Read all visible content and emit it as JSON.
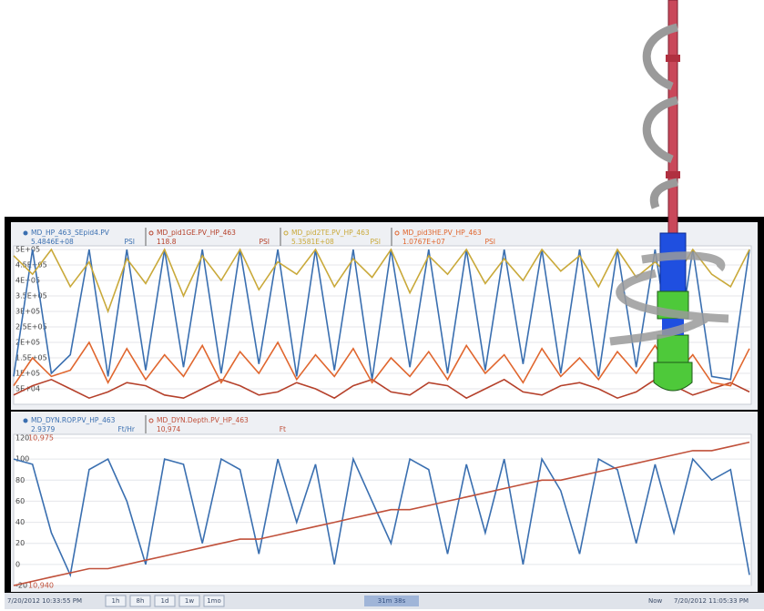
{
  "chart_data": [
    {
      "type": "line",
      "grid": true,
      "ylim": [
        0,
        500000
      ],
      "yticks": [
        {
          "value": 50000,
          "label": "5E+04"
        },
        {
          "value": 100000,
          "label": "1E+05"
        },
        {
          "value": 150000,
          "label": "1.5E+05"
        },
        {
          "value": 200000,
          "label": "2E+05"
        },
        {
          "value": 250000,
          "label": "2.5E+05"
        },
        {
          "value": 300000,
          "label": "3E+05"
        },
        {
          "value": 350000,
          "label": "3.5E+05"
        },
        {
          "value": 400000,
          "label": "4E+05"
        },
        {
          "value": 450000,
          "label": "4.5E+05"
        },
        {
          "value": 500000,
          "label": "5E+05"
        }
      ],
      "series": [
        {
          "name": "MD_HP_463_SEpid4.PV",
          "current": "5.4846E+08",
          "unit": "PSI",
          "color": "#3a6fb0",
          "values": [
            90000,
            500000,
            100000,
            160000,
            500000,
            90000,
            500000,
            110000,
            500000,
            120000,
            500000,
            100000,
            500000,
            130000,
            500000,
            90000,
            500000,
            110000,
            500000,
            80000,
            500000,
            120000,
            500000,
            100000,
            500000,
            110000,
            500000,
            130000,
            500000,
            100000,
            500000,
            90000,
            500000,
            120000,
            500000,
            100000,
            500000,
            90000,
            80000,
            500000
          ]
        },
        {
          "name": "MD_pid1GE.PV_HP_463",
          "current": "118.8",
          "unit": "PSI",
          "color": "#b5402a",
          "values": [
            30000,
            60000,
            80000,
            50000,
            20000,
            40000,
            70000,
            60000,
            30000,
            20000,
            50000,
            80000,
            60000,
            30000,
            40000,
            70000,
            50000,
            20000,
            60000,
            80000,
            40000,
            30000,
            70000,
            60000,
            20000,
            50000,
            80000,
            40000,
            30000,
            60000,
            70000,
            50000,
            20000,
            40000,
            80000,
            60000,
            30000,
            50000,
            70000,
            40000
          ]
        },
        {
          "name": "MD_pid2TE.PV_HP_463",
          "current": "5.3581E+08",
          "unit": "PSI",
          "color": "#c9a93a",
          "values": [
            480000,
            420000,
            500000,
            380000,
            460000,
            300000,
            470000,
            390000,
            500000,
            350000,
            480000,
            400000,
            500000,
            370000,
            460000,
            420000,
            500000,
            380000,
            470000,
            410000,
            500000,
            360000,
            480000,
            420000,
            500000,
            390000,
            470000,
            400000,
            500000,
            430000,
            480000,
            380000,
            500000,
            410000,
            460000,
            400000,
            500000,
            420000,
            380000,
            500000
          ]
        },
        {
          "name": "MD_pid3HE.PV_HP_463",
          "current": "1.0767E+07",
          "unit": "PSI",
          "color": "#e0662e",
          "values": [
            60000,
            150000,
            90000,
            110000,
            200000,
            70000,
            180000,
            80000,
            160000,
            90000,
            190000,
            70000,
            170000,
            100000,
            200000,
            80000,
            160000,
            90000,
            180000,
            70000,
            150000,
            90000,
            170000,
            80000,
            190000,
            100000,
            160000,
            70000,
            180000,
            90000,
            150000,
            80000,
            170000,
            100000,
            190000,
            90000,
            160000,
            70000,
            60000,
            180000
          ]
        }
      ]
    },
    {
      "type": "line",
      "grid": true,
      "ylim": [
        -20,
        120
      ],
      "yticks": [
        -20,
        0,
        20,
        40,
        60,
        80,
        100,
        120
      ],
      "y2lim": [
        10940,
        10975
      ],
      "y2ticks": [
        {
          "value": 10940,
          "label": "10,940"
        },
        {
          "value": 10975,
          "label": "10,975"
        }
      ],
      "series": [
        {
          "name": "MD_DYN.ROP.PV_HP_463",
          "current": "2.9379",
          "unit": "Ft/Hr",
          "color": "#3a6fb0",
          "values": [
            100,
            95,
            30,
            -10,
            90,
            100,
            60,
            0,
            100,
            95,
            20,
            100,
            90,
            10,
            100,
            40,
            95,
            0,
            100,
            60,
            20,
            100,
            90,
            10,
            95,
            30,
            100,
            0,
            100,
            70,
            10,
            100,
            90,
            20,
            95,
            30,
            100,
            80,
            90,
            -10
          ]
        },
        {
          "name": "MD_DYN.Depth.PV_HP_463",
          "current": "10,974",
          "unit": "Ft",
          "color": "#c0503a",
          "axis": "y2",
          "values": [
            10940,
            10941,
            10942,
            10943,
            10944,
            10944,
            10945,
            10946,
            10947,
            10948,
            10949,
            10950,
            10951,
            10951,
            10952,
            10953,
            10954,
            10955,
            10956,
            10957,
            10958,
            10958,
            10959,
            10960,
            10961,
            10962,
            10963,
            10964,
            10965,
            10965,
            10966,
            10967,
            10968,
            10969,
            10970,
            10971,
            10972,
            10972,
            10973,
            10974
          ]
        }
      ]
    }
  ],
  "toolbar": {
    "start": "7/20/2012 10:33:55 PM",
    "ranges": [
      "1h",
      "8h",
      "1d",
      "1w",
      "1mo"
    ],
    "span": "31m 38s",
    "now": "Now",
    "end": "7/20/2012 11:05:33 PM"
  }
}
